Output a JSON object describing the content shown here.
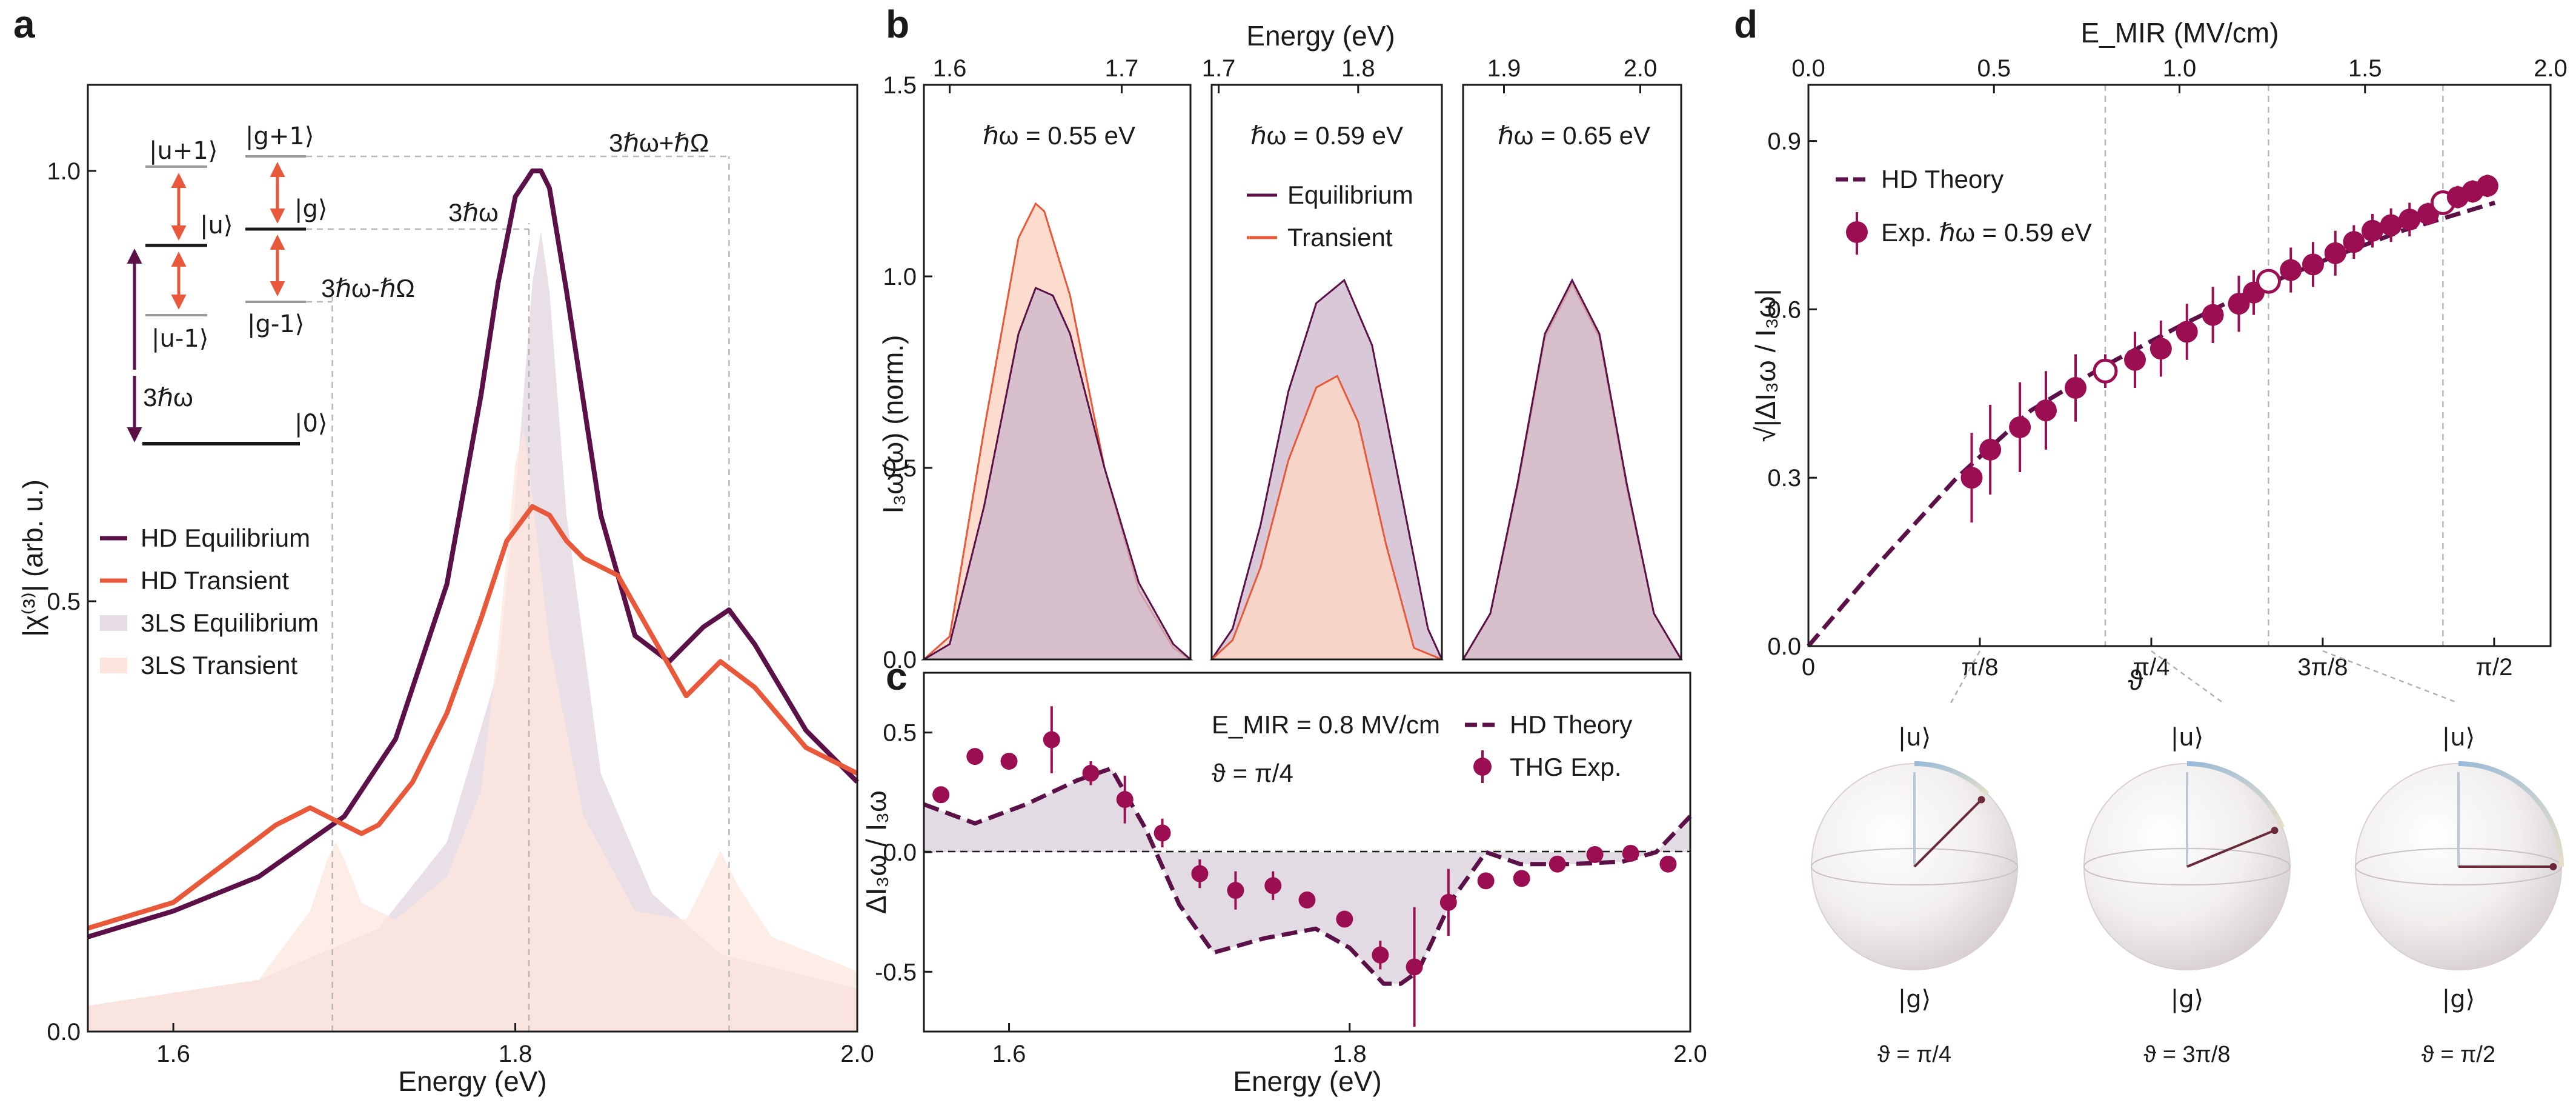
{
  "colors": {
    "equilibrium": "#5b1048",
    "transient": "#e8583a",
    "eq_fill": "#e7dbe4",
    "tr_fill": "#fde5dd",
    "exp": "#9b0f52",
    "shade": "#dcd2dc",
    "equil_area": "#cbb6cb",
    "trans_area": "#fbd6c4",
    "sphere_base": "#eeeeee"
  },
  "panels": [
    "a",
    "b",
    "c",
    "d"
  ],
  "chart_data": [
    {
      "id": "a",
      "type": "line",
      "xlabel": "Energy (eV)",
      "ylabel": "|χ⁽³⁾| (arb. u.)",
      "xlim": [
        1.55,
        2.0
      ],
      "ylim": [
        0,
        1.1
      ],
      "xticks": [
        "1.6",
        "1.8",
        "2.0"
      ],
      "yticks": [
        "0.0",
        "0.5",
        "1.0"
      ],
      "legend": [
        "HD Equilibrium",
        "HD Transient",
        "3LS Equilibrium",
        "3LS Transient"
      ],
      "series": [
        {
          "name": "HD Equilibrium",
          "x": [
            1.55,
            1.6,
            1.65,
            1.7,
            1.73,
            1.76,
            1.78,
            1.79,
            1.8,
            1.81,
            1.815,
            1.82,
            1.83,
            1.85,
            1.87,
            1.89,
            1.91,
            1.925,
            1.94,
            1.97,
            2.0
          ],
          "y": [
            0.11,
            0.14,
            0.18,
            0.25,
            0.34,
            0.52,
            0.74,
            0.87,
            0.97,
            1.0,
            1.0,
            0.98,
            0.86,
            0.6,
            0.46,
            0.43,
            0.47,
            0.49,
            0.45,
            0.35,
            0.29
          ]
        },
        {
          "name": "HD Transient",
          "x": [
            1.55,
            1.6,
            1.64,
            1.66,
            1.68,
            1.7,
            1.71,
            1.72,
            1.74,
            1.76,
            1.78,
            1.795,
            1.81,
            1.82,
            1.83,
            1.84,
            1.86,
            1.88,
            1.9,
            1.92,
            1.94,
            1.97,
            2.0
          ],
          "y": [
            0.12,
            0.15,
            0.21,
            0.24,
            0.26,
            0.24,
            0.23,
            0.24,
            0.29,
            0.37,
            0.48,
            0.57,
            0.61,
            0.6,
            0.57,
            0.55,
            0.53,
            0.46,
            0.39,
            0.43,
            0.4,
            0.33,
            0.3
          ]
        },
        {
          "name": "3LS Equilibrium",
          "x": [
            1.55,
            1.65,
            1.72,
            1.76,
            1.79,
            1.8,
            1.81,
            1.815,
            1.82,
            1.83,
            1.85,
            1.88,
            1.92,
            2.0
          ],
          "y": [
            0.03,
            0.06,
            0.12,
            0.22,
            0.42,
            0.62,
            0.87,
            0.93,
            0.86,
            0.6,
            0.3,
            0.16,
            0.09,
            0.05
          ]
        },
        {
          "name": "3LS Transient",
          "x": [
            1.55,
            1.65,
            1.68,
            1.69,
            1.695,
            1.7,
            1.71,
            1.73,
            1.76,
            1.78,
            1.79,
            1.8,
            1.805,
            1.81,
            1.82,
            1.84,
            1.87,
            1.9,
            1.91,
            1.92,
            1.93,
            1.95,
            2.0
          ],
          "y": [
            0.03,
            0.06,
            0.14,
            0.2,
            0.22,
            0.2,
            0.15,
            0.13,
            0.18,
            0.28,
            0.45,
            0.66,
            0.7,
            0.62,
            0.45,
            0.25,
            0.14,
            0.13,
            0.17,
            0.21,
            0.17,
            0.11,
            0.07
          ]
        }
      ],
      "guides_x": [
        1.693,
        1.808,
        1.925
      ],
      "labels": {
        "three_hw": "3ℏω",
        "three_hw_plus": "3ℏω+ℏΩ",
        "three_hw_minus": "3ℏω-ℏΩ",
        "hw_arrow": "3ℏω"
      },
      "levels": [
        "|u+1⟩",
        "|u⟩",
        "|u-1⟩",
        "|g+1⟩",
        "|g⟩",
        "|g-1⟩",
        "|0⟩"
      ]
    },
    {
      "id": "b",
      "type": "area",
      "xlabel": "Energy (eV)",
      "ylabel": "I₃ω(ω) (norm.)",
      "ylim": [
        0,
        1.5
      ],
      "yticks": [
        "0.0",
        "0.5",
        "1.0",
        "1.5"
      ],
      "legend": [
        "Equilibrium",
        "Transient"
      ],
      "subpanels": [
        {
          "label": "ℏω = 0.55 eV",
          "xlim": [
            1.585,
            1.74
          ],
          "xticks": [
            "1.6",
            "1.7"
          ],
          "equilibrium": {
            "x": [
              1.585,
              1.6,
              1.62,
              1.64,
              1.65,
              1.66,
              1.67,
              1.69,
              1.71,
              1.73,
              1.74
            ],
            "y": [
              0.0,
              0.04,
              0.4,
              0.85,
              0.97,
              0.95,
              0.85,
              0.5,
              0.2,
              0.04,
              0.0
            ]
          },
          "transient": {
            "x": [
              1.585,
              1.6,
              1.62,
              1.64,
              1.65,
              1.655,
              1.67,
              1.69,
              1.71,
              1.73,
              1.74
            ],
            "y": [
              0.0,
              0.06,
              0.6,
              1.1,
              1.19,
              1.17,
              0.95,
              0.5,
              0.18,
              0.03,
              0.0
            ]
          }
        },
        {
          "label": "ℏω = 0.59 eV",
          "xlim": [
            1.695,
            1.86
          ],
          "xticks": [
            "1.7",
            "1.8"
          ],
          "equilibrium": {
            "x": [
              1.695,
              1.71,
              1.73,
              1.75,
              1.77,
              1.79,
              1.81,
              1.83,
              1.85,
              1.86
            ],
            "y": [
              0.0,
              0.08,
              0.35,
              0.7,
              0.93,
              0.99,
              0.82,
              0.45,
              0.08,
              0.0
            ]
          },
          "transient": {
            "x": [
              1.695,
              1.71,
              1.73,
              1.75,
              1.77,
              1.785,
              1.8,
              1.82,
              1.84,
              1.86
            ],
            "y": [
              0.0,
              0.05,
              0.24,
              0.52,
              0.71,
              0.74,
              0.62,
              0.3,
              0.03,
              0.0
            ]
          }
        },
        {
          "label": "ℏω = 0.65 eV",
          "xlim": [
            1.87,
            2.03
          ],
          "xticks": [
            "1.9",
            "2.0"
          ],
          "equilibrium": {
            "x": [
              1.87,
              1.89,
              1.91,
              1.93,
              1.95,
              1.97,
              1.99,
              2.01,
              2.03
            ],
            "y": [
              0.0,
              0.12,
              0.46,
              0.85,
              0.99,
              0.85,
              0.46,
              0.12,
              0.0
            ]
          },
          "transient": {
            "x": [
              1.87,
              1.89,
              1.91,
              1.93,
              1.95,
              1.97,
              1.99,
              2.01,
              2.03
            ],
            "y": [
              0.0,
              0.12,
              0.45,
              0.84,
              0.98,
              0.84,
              0.45,
              0.12,
              0.0
            ]
          }
        }
      ]
    },
    {
      "id": "c",
      "type": "scatter",
      "xlabel": "Energy (eV)",
      "ylabel": "ΔI₃ω / I₃ω",
      "xlim": [
        1.55,
        2.0
      ],
      "ylim": [
        -0.75,
        0.75
      ],
      "xticks": [
        "1.6",
        "1.8",
        "2.0"
      ],
      "yticks": [
        "0.5",
        "0.0",
        "-0.5"
      ],
      "annotation_field": "E_MIR = 0.8 MV/cm",
      "annotation_theta": "ϑ = π/4",
      "legend": [
        "HD Theory",
        "THG Exp."
      ],
      "theory": {
        "x": [
          1.55,
          1.58,
          1.61,
          1.64,
          1.66,
          1.68,
          1.7,
          1.72,
          1.75,
          1.78,
          1.8,
          1.82,
          1.83,
          1.84,
          1.86,
          1.88,
          1.9,
          1.93,
          1.96,
          1.98,
          2.0
        ],
        "y": [
          0.2,
          0.12,
          0.2,
          0.3,
          0.35,
          0.1,
          -0.22,
          -0.42,
          -0.36,
          -0.32,
          -0.4,
          -0.55,
          -0.55,
          -0.5,
          -0.2,
          0.0,
          -0.05,
          -0.05,
          -0.04,
          0.0,
          0.15
        ]
      },
      "points": [
        {
          "x": 1.56,
          "y": 0.24,
          "err": 0.02
        },
        {
          "x": 1.58,
          "y": 0.4,
          "err": 0.02
        },
        {
          "x": 1.6,
          "y": 0.38,
          "err": 0.02
        },
        {
          "x": 1.625,
          "y": 0.47,
          "err": 0.14
        },
        {
          "x": 1.648,
          "y": 0.33,
          "err": 0.05
        },
        {
          "x": 1.668,
          "y": 0.22,
          "err": 0.1
        },
        {
          "x": 1.69,
          "y": 0.08,
          "err": 0.06
        },
        {
          "x": 1.712,
          "y": -0.09,
          "err": 0.06
        },
        {
          "x": 1.733,
          "y": -0.16,
          "err": 0.08
        },
        {
          "x": 1.755,
          "y": -0.14,
          "err": 0.06
        },
        {
          "x": 1.775,
          "y": -0.2,
          "err": 0.02
        },
        {
          "x": 1.797,
          "y": -0.28,
          "err": 0.02
        },
        {
          "x": 1.818,
          "y": -0.43,
          "err": 0.06
        },
        {
          "x": 1.838,
          "y": -0.48,
          "err": 0.25
        },
        {
          "x": 1.858,
          "y": -0.21,
          "err": 0.14
        },
        {
          "x": 1.88,
          "y": -0.12,
          "err": 0.02
        },
        {
          "x": 1.901,
          "y": -0.11,
          "err": 0.02
        },
        {
          "x": 1.922,
          "y": -0.05,
          "err": 0.03
        },
        {
          "x": 1.944,
          "y": -0.01,
          "err": 0.02
        },
        {
          "x": 1.965,
          "y": -0.005,
          "err": 0.02
        },
        {
          "x": 1.987,
          "y": -0.05,
          "err": 0.03
        }
      ]
    },
    {
      "id": "d",
      "type": "scatter",
      "xlabel_top": "E_MIR (MV/cm)",
      "xlabel_bottom": "ϑ",
      "ylabel": "√|ΔI₃ω / I₃ω|",
      "xlim": [
        0,
        2.0
      ],
      "ylim": [
        0,
        1.0
      ],
      "xticks_top": [
        "0.0",
        "0.5",
        "1.0",
        "1.5",
        "2.0"
      ],
      "xticks_bottom": [
        "0",
        "π/8",
        "π/4",
        "3π/8",
        "π/2"
      ],
      "theta_tick_values": [
        0,
        0.3927,
        0.7854,
        1.1781,
        1.5708
      ],
      "theta_axis_max": 1.7,
      "yticks": [
        "0.0",
        "0.3",
        "0.6",
        "0.9"
      ],
      "legend": [
        "HD Theory",
        "Exp. ℏω = 0.59 eV"
      ],
      "theory": {
        "x": [
          0,
          0.2,
          0.4,
          0.6,
          0.8,
          1.0,
          1.2,
          1.4,
          1.6,
          1.8,
          1.85
        ],
        "y": [
          0,
          0.155,
          0.3,
          0.42,
          0.5,
          0.57,
          0.635,
          0.69,
          0.74,
          0.78,
          0.79
        ]
      },
      "points": [
        {
          "x": 0.44,
          "y": 0.3,
          "err": 0.08,
          "open": false
        },
        {
          "x": 0.49,
          "y": 0.35,
          "err": 0.08,
          "open": false
        },
        {
          "x": 0.57,
          "y": 0.39,
          "err": 0.08,
          "open": false
        },
        {
          "x": 0.64,
          "y": 0.42,
          "err": 0.07,
          "open": false
        },
        {
          "x": 0.72,
          "y": 0.46,
          "err": 0.06,
          "open": false
        },
        {
          "x": 0.8,
          "y": 0.49,
          "err": 0.03,
          "open": true
        },
        {
          "x": 0.88,
          "y": 0.51,
          "err": 0.05,
          "open": false
        },
        {
          "x": 0.95,
          "y": 0.53,
          "err": 0.05,
          "open": false
        },
        {
          "x": 1.02,
          "y": 0.56,
          "err": 0.05,
          "open": false
        },
        {
          "x": 1.09,
          "y": 0.59,
          "err": 0.05,
          "open": false
        },
        {
          "x": 1.16,
          "y": 0.61,
          "err": 0.05,
          "open": false
        },
        {
          "x": 1.2,
          "y": 0.63,
          "err": 0.04,
          "open": false
        },
        {
          "x": 1.24,
          "y": 0.65,
          "err": 0.02,
          "open": true
        },
        {
          "x": 1.3,
          "y": 0.67,
          "err": 0.04,
          "open": false
        },
        {
          "x": 1.36,
          "y": 0.68,
          "err": 0.04,
          "open": false
        },
        {
          "x": 1.42,
          "y": 0.7,
          "err": 0.04,
          "open": false
        },
        {
          "x": 1.47,
          "y": 0.72,
          "err": 0.03,
          "open": false
        },
        {
          "x": 1.52,
          "y": 0.74,
          "err": 0.03,
          "open": false
        },
        {
          "x": 1.57,
          "y": 0.75,
          "err": 0.03,
          "open": false
        },
        {
          "x": 1.62,
          "y": 0.76,
          "err": 0.03,
          "open": false
        },
        {
          "x": 1.67,
          "y": 0.77,
          "err": 0.02,
          "open": false
        },
        {
          "x": 1.71,
          "y": 0.79,
          "err": 0.02,
          "open": true
        },
        {
          "x": 1.75,
          "y": 0.8,
          "err": 0.02,
          "open": false
        },
        {
          "x": 1.79,
          "y": 0.81,
          "err": 0.02,
          "open": false
        },
        {
          "x": 1.83,
          "y": 0.82,
          "err": 0.02,
          "open": false
        }
      ],
      "guides_x": [
        0.8,
        1.24,
        1.71
      ],
      "spheres": [
        {
          "top": "|u⟩",
          "bottom": "|g⟩",
          "theta": "ϑ = π/4",
          "angle_deg": 45
        },
        {
          "top": "|u⟩",
          "bottom": "|g⟩",
          "theta": "ϑ = 3π/8",
          "angle_deg": 67.5
        },
        {
          "top": "|u⟩",
          "bottom": "|g⟩",
          "theta": "ϑ = π/2",
          "angle_deg": 90
        }
      ]
    }
  ]
}
